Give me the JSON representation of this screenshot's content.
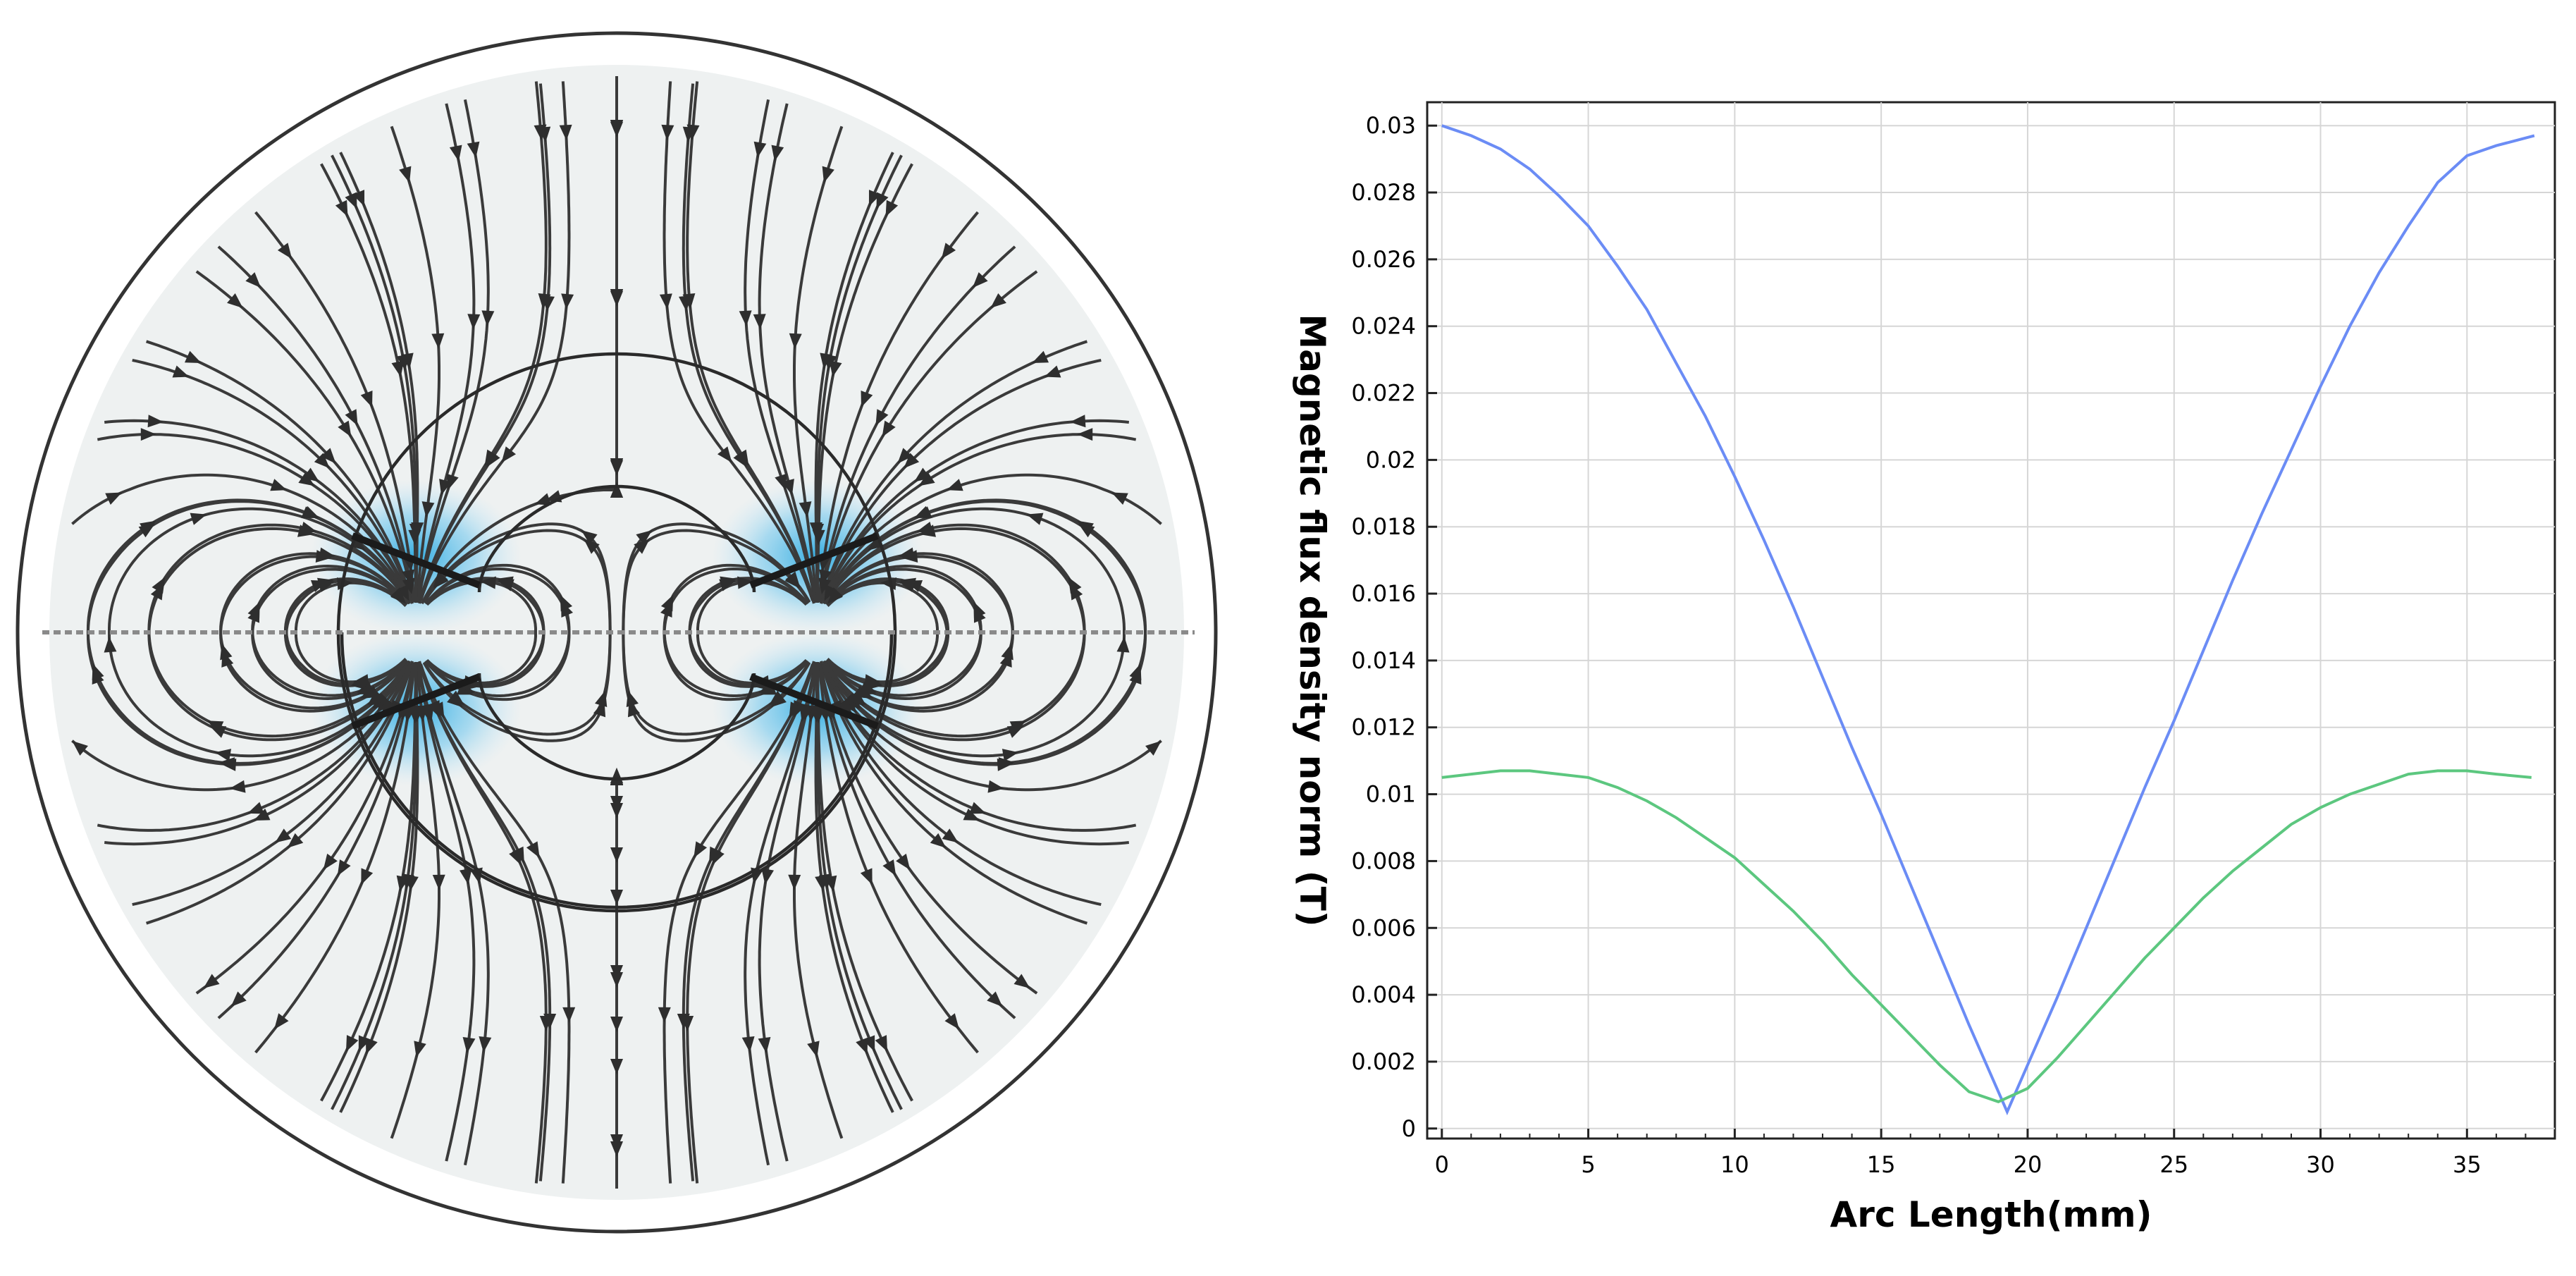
{
  "field_plot": {
    "description_icon": "magnetic-field-streamline-plot",
    "colors": {
      "background": "#eef1f1",
      "streamline": "#3a3a3a",
      "magnet_glow": "#2aa9e0"
    }
  },
  "chart_data": {
    "type": "line",
    "title": "",
    "xlabel": "Arc Length(mm)",
    "ylabel": "Magnetic flux density norm (T)",
    "xlim": [
      -0.5,
      38
    ],
    "ylim": [
      -0.0003,
      0.0307
    ],
    "x_ticks": [
      "0",
      "5",
      "10",
      "15",
      "20",
      "25",
      "30",
      "35"
    ],
    "y_ticks": [
      "0",
      "0.002",
      "0.004",
      "0.006",
      "0.008",
      "0.01",
      "0.012",
      "0.014",
      "0.016",
      "0.018",
      "0.02",
      "0.022",
      "0.024",
      "0.026",
      "0.028",
      "0.03"
    ],
    "grid": true,
    "legend": "none",
    "series": [
      {
        "color": "#6b8cf5",
        "x": [
          0,
          1,
          2,
          3,
          4,
          5,
          6,
          7,
          8,
          9,
          10,
          11,
          12,
          13,
          14,
          15,
          16,
          17,
          18,
          19.3,
          20,
          21,
          22,
          23,
          24,
          25,
          26,
          27,
          28,
          29,
          30,
          31,
          32,
          33,
          34,
          35,
          36,
          37.3
        ],
        "y": [
          0.03,
          0.0297,
          0.0293,
          0.0287,
          0.0279,
          0.027,
          0.0258,
          0.0245,
          0.0229,
          0.0213,
          0.0195,
          0.0176,
          0.0156,
          0.0135,
          0.0114,
          0.0094,
          0.0073,
          0.0052,
          0.0031,
          0.0005,
          0.0019,
          0.0039,
          0.006,
          0.0081,
          0.0102,
          0.0122,
          0.0143,
          0.0164,
          0.0184,
          0.0203,
          0.0222,
          0.024,
          0.0256,
          0.027,
          0.0283,
          0.0291,
          0.0294,
          0.0297
        ]
      },
      {
        "color": "#5cc77f",
        "x": [
          0,
          1,
          2,
          3,
          4,
          5,
          6,
          7,
          8,
          9,
          10,
          11,
          12,
          13,
          14,
          15,
          16,
          17,
          18,
          19,
          20,
          21,
          22,
          23,
          24,
          25,
          26,
          27,
          28,
          29,
          30,
          31,
          32,
          33,
          34,
          35,
          36,
          37.2
        ],
        "y": [
          0.0105,
          0.0106,
          0.0107,
          0.0107,
          0.0106,
          0.0105,
          0.0102,
          0.0098,
          0.0093,
          0.0087,
          0.0081,
          0.0073,
          0.0065,
          0.0056,
          0.0046,
          0.0037,
          0.0028,
          0.0019,
          0.0011,
          0.0008,
          0.0012,
          0.0021,
          0.0031,
          0.0041,
          0.0051,
          0.006,
          0.0069,
          0.0077,
          0.0084,
          0.0091,
          0.0096,
          0.01,
          0.0103,
          0.0106,
          0.0107,
          0.0107,
          0.0106,
          0.0105
        ]
      }
    ]
  }
}
